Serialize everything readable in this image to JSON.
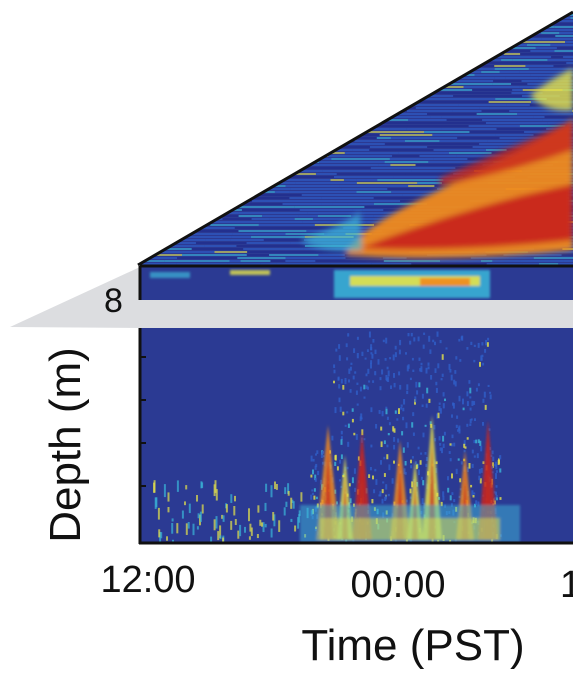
{
  "chart_data": {
    "type": "heatmap",
    "title": "",
    "xlabel": "Time (PST)",
    "ylabel": "Depth (m)",
    "x_tick_labels": [
      "12:00",
      "00:00",
      "1"
    ],
    "y_tick_labels": [
      "8"
    ],
    "colormap": [
      "#1e2a8a",
      "#2f5fc9",
      "#3bb7d9",
      "#e6e34a",
      "#f08a1f",
      "#c8261c",
      "#7a0f0a"
    ],
    "background_color": "#2b3a93",
    "band_color": "#dcdde0",
    "note": ""
  }
}
